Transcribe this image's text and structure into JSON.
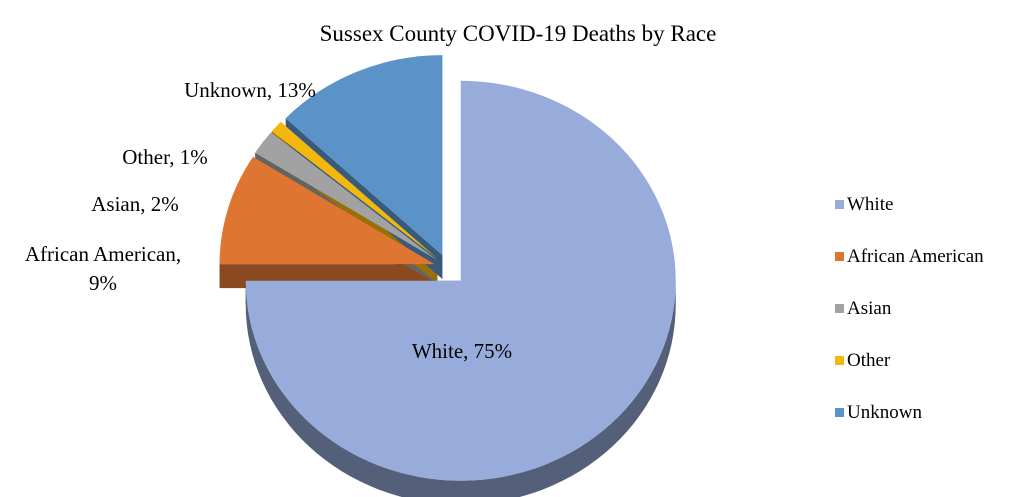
{
  "chart_data": {
    "type": "pie",
    "title": "Sussex County COVID-19 Deaths by Race",
    "categories": [
      "White",
      "African American",
      "Asian",
      "Other",
      "Unknown"
    ],
    "values": [
      75,
      9,
      2,
      1,
      13
    ],
    "unit": "%",
    "data_labels": [
      "White, 75%",
      "African American, 9%",
      "Asian, 2%",
      "Other, 1%",
      "Unknown, 13%"
    ],
    "colors": [
      "#98acdc",
      "#de7530",
      "#a2a2a2",
      "#f4b70c",
      "#5b93c8"
    ],
    "exploded": true,
    "three_d": true,
    "legend_position": "right"
  }
}
